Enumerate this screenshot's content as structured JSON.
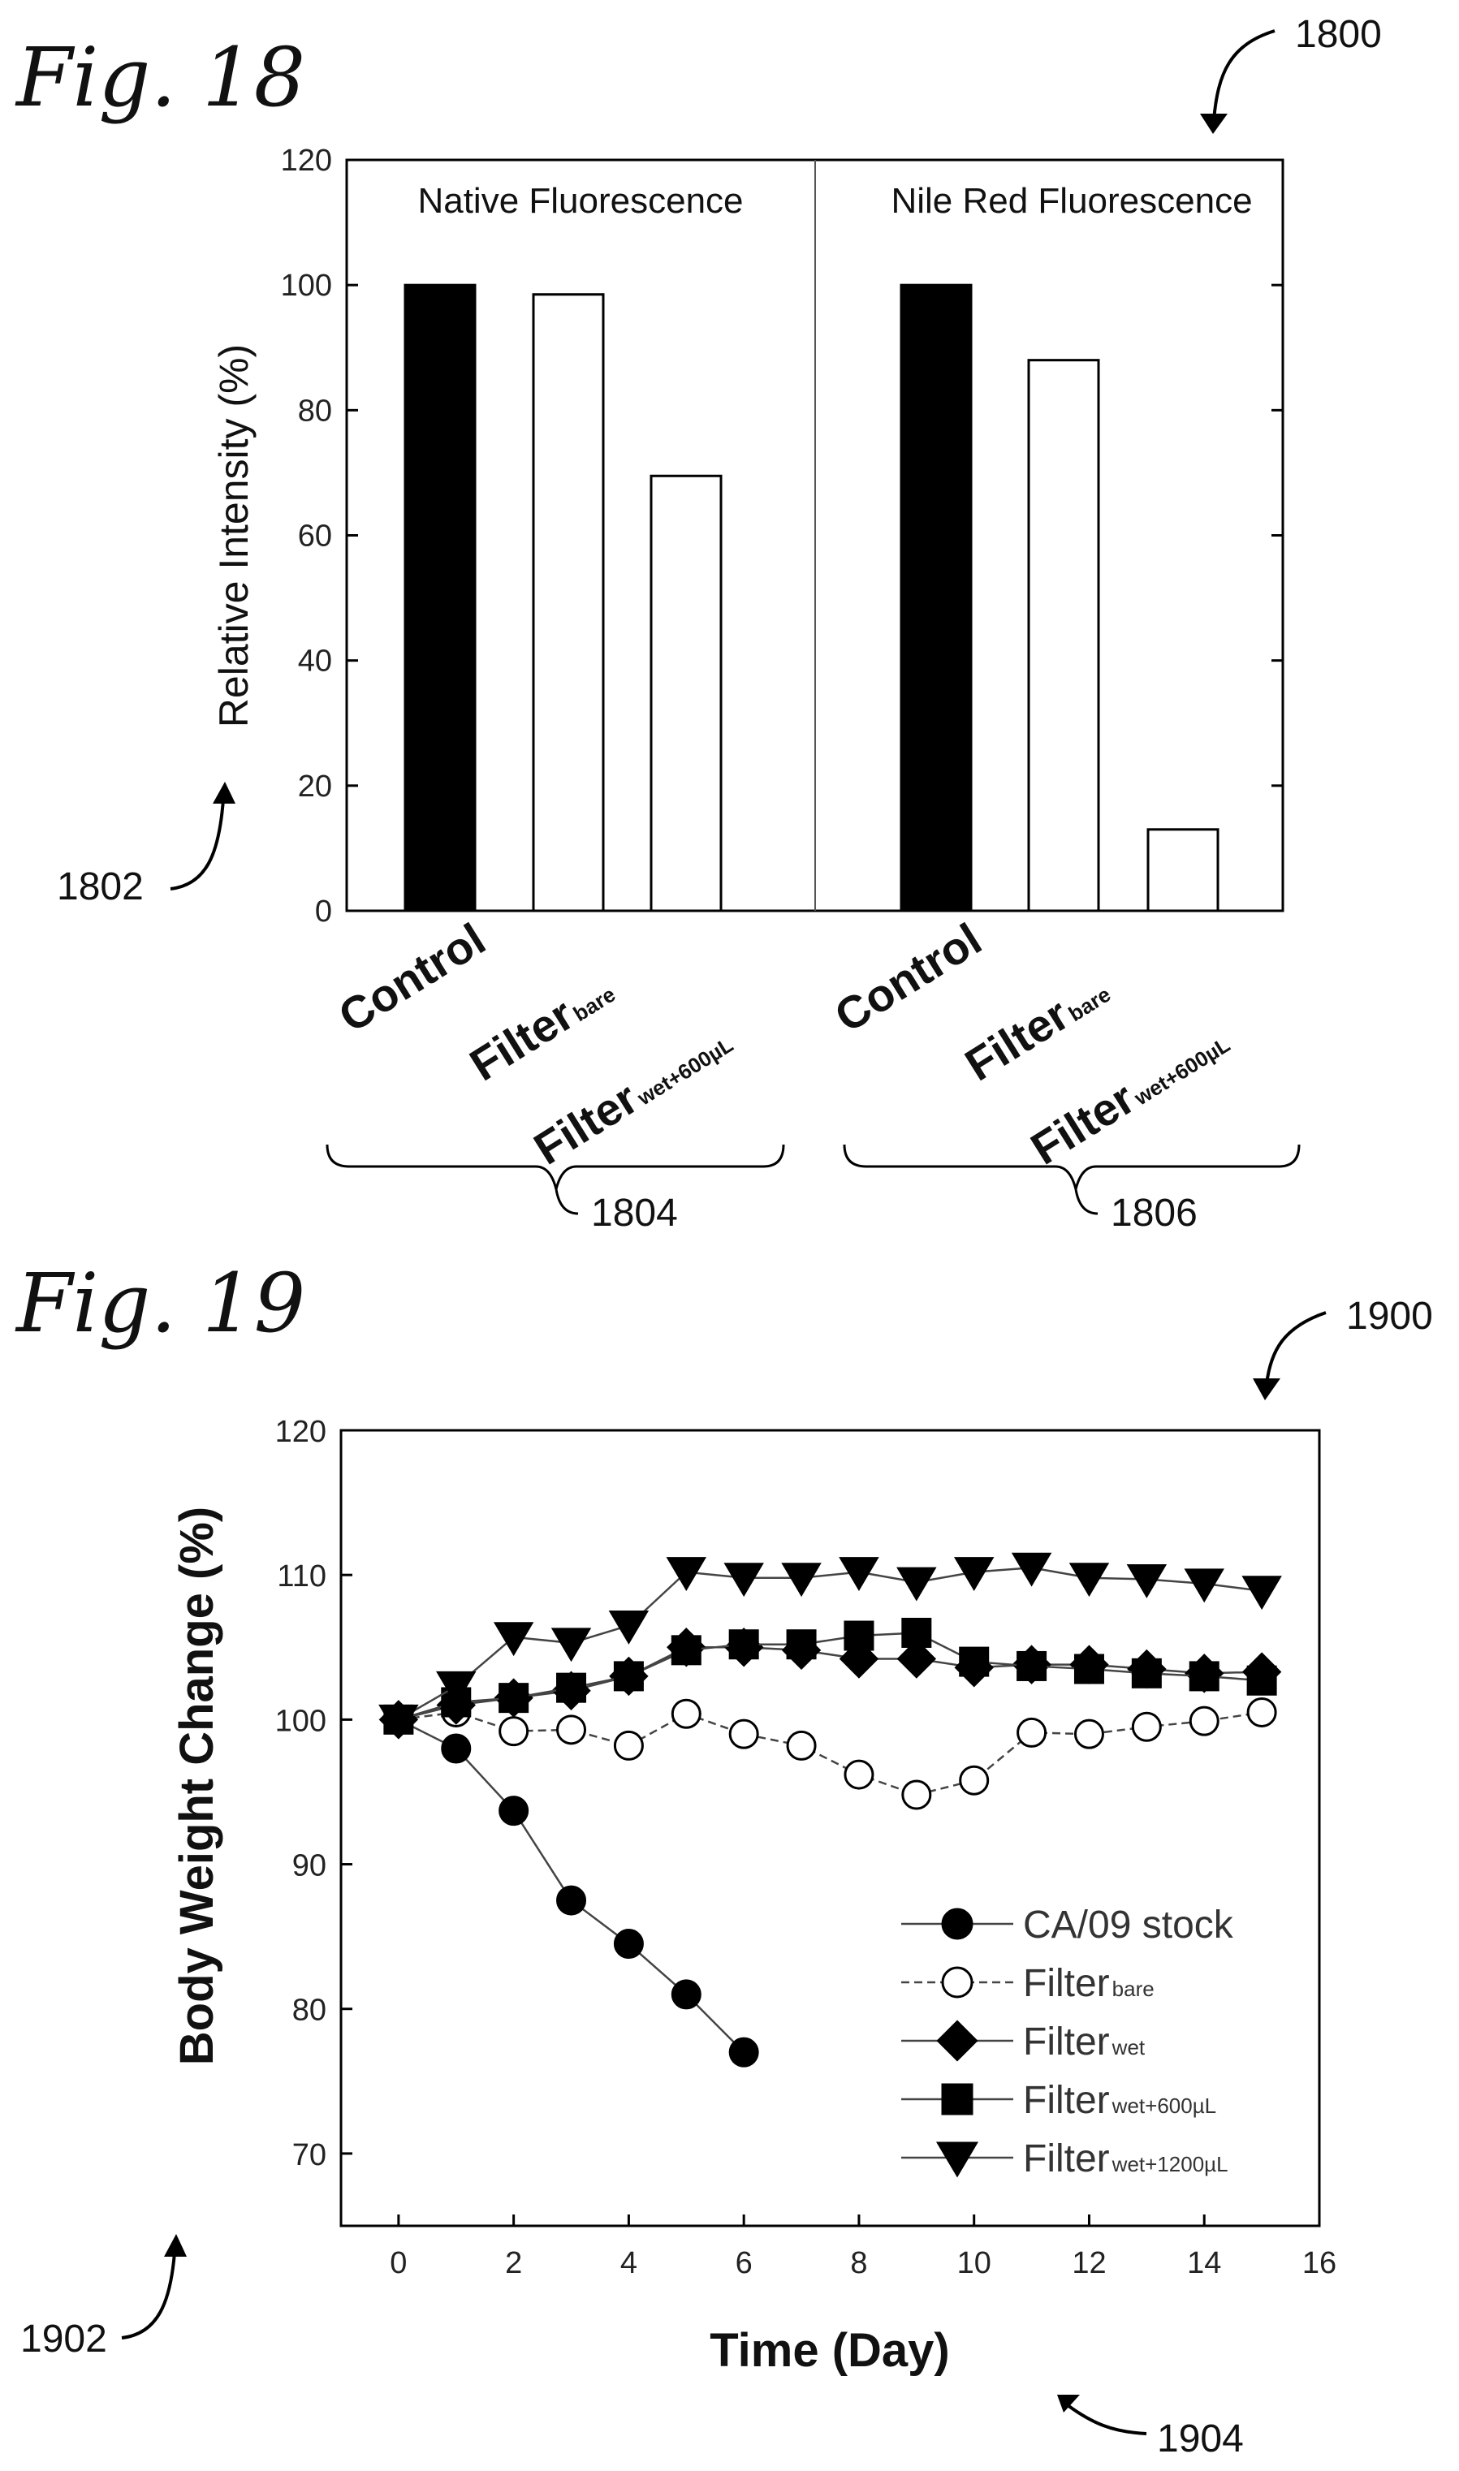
{
  "figure18": {
    "fig_label": "Fig. 18",
    "ref_figure": "1800",
    "ref_yaxis": "1802",
    "ref_group1": "1804",
    "ref_group2": "1806",
    "chart_data": {
      "type": "bar",
      "ylabel": "Relative Intensity (%)",
      "ylim": [
        0,
        120
      ],
      "yticks": [
        0,
        20,
        40,
        60,
        80,
        100,
        120
      ],
      "panels": [
        {
          "title": "Native Fluorescence",
          "categories": [
            {
              "main": "Control",
              "sub": ""
            },
            {
              "main": "Filter",
              "sub": "bare"
            },
            {
              "main": "Filter",
              "sub": "wet+600µL"
            }
          ],
          "values": [
            100,
            98.5,
            69.5
          ],
          "fills": [
            "#000000",
            "#ffffff",
            "#ffffff"
          ]
        },
        {
          "title": "Nile Red Fluorescence",
          "categories": [
            {
              "main": "Control",
              "sub": ""
            },
            {
              "main": "Filter",
              "sub": "bare"
            },
            {
              "main": "Filter",
              "sub": "wet+600µL"
            }
          ],
          "values": [
            100,
            88,
            13
          ],
          "fills": [
            "#000000",
            "#ffffff",
            "#ffffff"
          ]
        }
      ]
    }
  },
  "figure19": {
    "fig_label": "Fig. 19",
    "ref_figure": "1900",
    "ref_yaxis": "1902",
    "ref_xaxis": "1904",
    "chart_data": {
      "type": "line",
      "xlabel": "Time (Day)",
      "ylabel": "Body Weight Change (%)",
      "xlim": [
        -1,
        16
      ],
      "ylim": [
        65,
        120
      ],
      "xticks": [
        0,
        2,
        4,
        6,
        8,
        10,
        12,
        14,
        16
      ],
      "yticks": [
        70,
        80,
        90,
        100,
        110,
        120
      ],
      "legend_position": "bottom-right",
      "series": [
        {
          "name": "CA/09 stock",
          "name_sub": "",
          "marker": "circle",
          "filled": true,
          "x": [
            0,
            1,
            2,
            3,
            4,
            5,
            6
          ],
          "y": [
            100,
            98,
            93.7,
            87.5,
            84.5,
            81,
            77
          ]
        },
        {
          "name": "Filter",
          "name_sub": "bare",
          "marker": "circle",
          "filled": false,
          "x": [
            0,
            1,
            2,
            3,
            4,
            5,
            6,
            7,
            8,
            9,
            10,
            11,
            12,
            13,
            14,
            15
          ],
          "y": [
            100,
            100.5,
            99.2,
            99.3,
            98.2,
            100.4,
            99,
            98.2,
            96.2,
            94.8,
            95.8,
            99.1,
            99,
            99.5,
            99.9,
            100.5
          ]
        },
        {
          "name": "Filter",
          "name_sub": "wet",
          "marker": "diamond",
          "filled": true,
          "x": [
            0,
            1,
            2,
            3,
            4,
            5,
            6,
            7,
            8,
            9,
            10,
            11,
            12,
            13,
            14,
            15
          ],
          "y": [
            100,
            101,
            101.5,
            102,
            103,
            105,
            105,
            104.8,
            104.2,
            104.2,
            103.6,
            103.8,
            103.8,
            103.5,
            103.2,
            103.3
          ]
        },
        {
          "name": "Filter",
          "name_sub": "wet+600µL",
          "marker": "square",
          "filled": true,
          "x": [
            0,
            1,
            2,
            3,
            4,
            5,
            6,
            7,
            8,
            9,
            10,
            11,
            12,
            13,
            14,
            15
          ],
          "y": [
            100,
            101.2,
            101.5,
            102.2,
            103,
            104.8,
            105.2,
            105.2,
            105.8,
            106,
            104,
            103.7,
            103.5,
            103.2,
            103,
            102.7
          ]
        },
        {
          "name": "Filter",
          "name_sub": "wet+1200µL",
          "marker": "triangle-down",
          "filled": true,
          "x": [
            0,
            1,
            2,
            3,
            4,
            5,
            6,
            7,
            8,
            9,
            10,
            11,
            12,
            13,
            14,
            15
          ],
          "y": [
            100,
            102.3,
            105.7,
            105.3,
            106.5,
            110.2,
            109.8,
            109.8,
            110.2,
            109.5,
            110.2,
            110.5,
            109.8,
            109.7,
            109.4,
            108.9
          ]
        }
      ]
    }
  }
}
